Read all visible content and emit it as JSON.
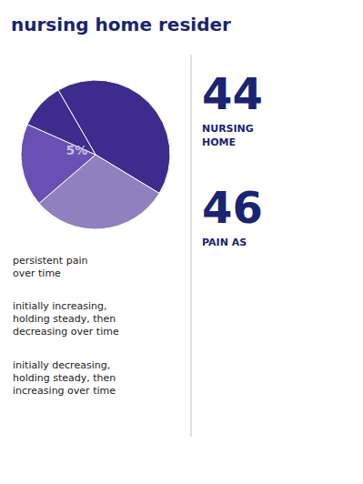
{
  "chart_data": {
    "type": "pie",
    "title": "nursing home resider",
    "values": [
      42,
      30,
      18,
      10
    ],
    "colors": [
      "#3d2b8e",
      "#9080c0",
      "#6a4fb5",
      "#3d2b8e"
    ],
    "annotations": [
      "5%",
      "persistent pain\nover time",
      "initially increasing,\nholding steady, then\ndecreasing over time",
      "initially decreasing,\nholding steady, then\nincreasing over time",
      "44",
      "NURSING\nHOME",
      "46",
      "PAIN AS"
    ]
  }
}
